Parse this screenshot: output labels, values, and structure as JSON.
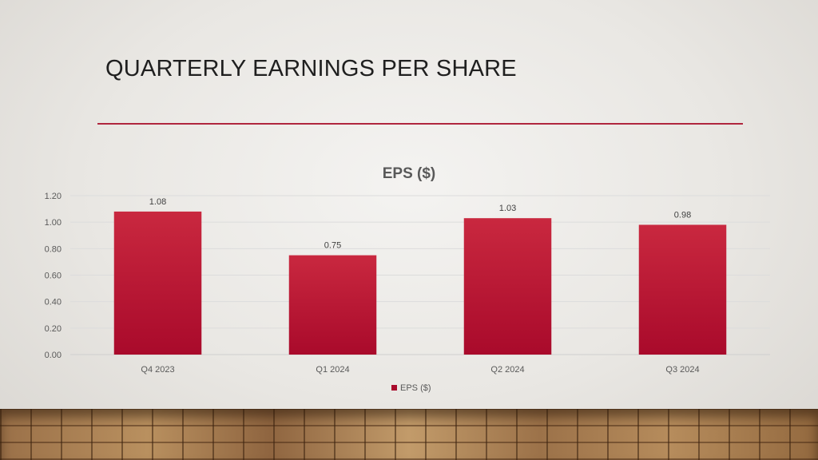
{
  "slide": {
    "title": "QUARTERLY EARNINGS PER SHARE"
  },
  "colors": {
    "bar_top": "#c9283f",
    "bar_bottom": "#a90a2b",
    "rule": "#b0263e"
  },
  "chart_data": {
    "type": "bar",
    "title": "EPS ($)",
    "categories": [
      "Q4 2023",
      "Q1 2024",
      "Q2 2024",
      "Q3 2024"
    ],
    "series": [
      {
        "name": "EPS ($)",
        "values": [
          1.08,
          0.75,
          1.03,
          0.98
        ]
      }
    ],
    "data_labels": [
      "1.08",
      "0.75",
      "1.03",
      "0.98"
    ],
    "y_ticks": [
      "0.00",
      "0.20",
      "0.40",
      "0.60",
      "0.80",
      "1.00",
      "1.20"
    ],
    "ylim": [
      0,
      1.2
    ],
    "grid": true,
    "legend": "bottom"
  }
}
